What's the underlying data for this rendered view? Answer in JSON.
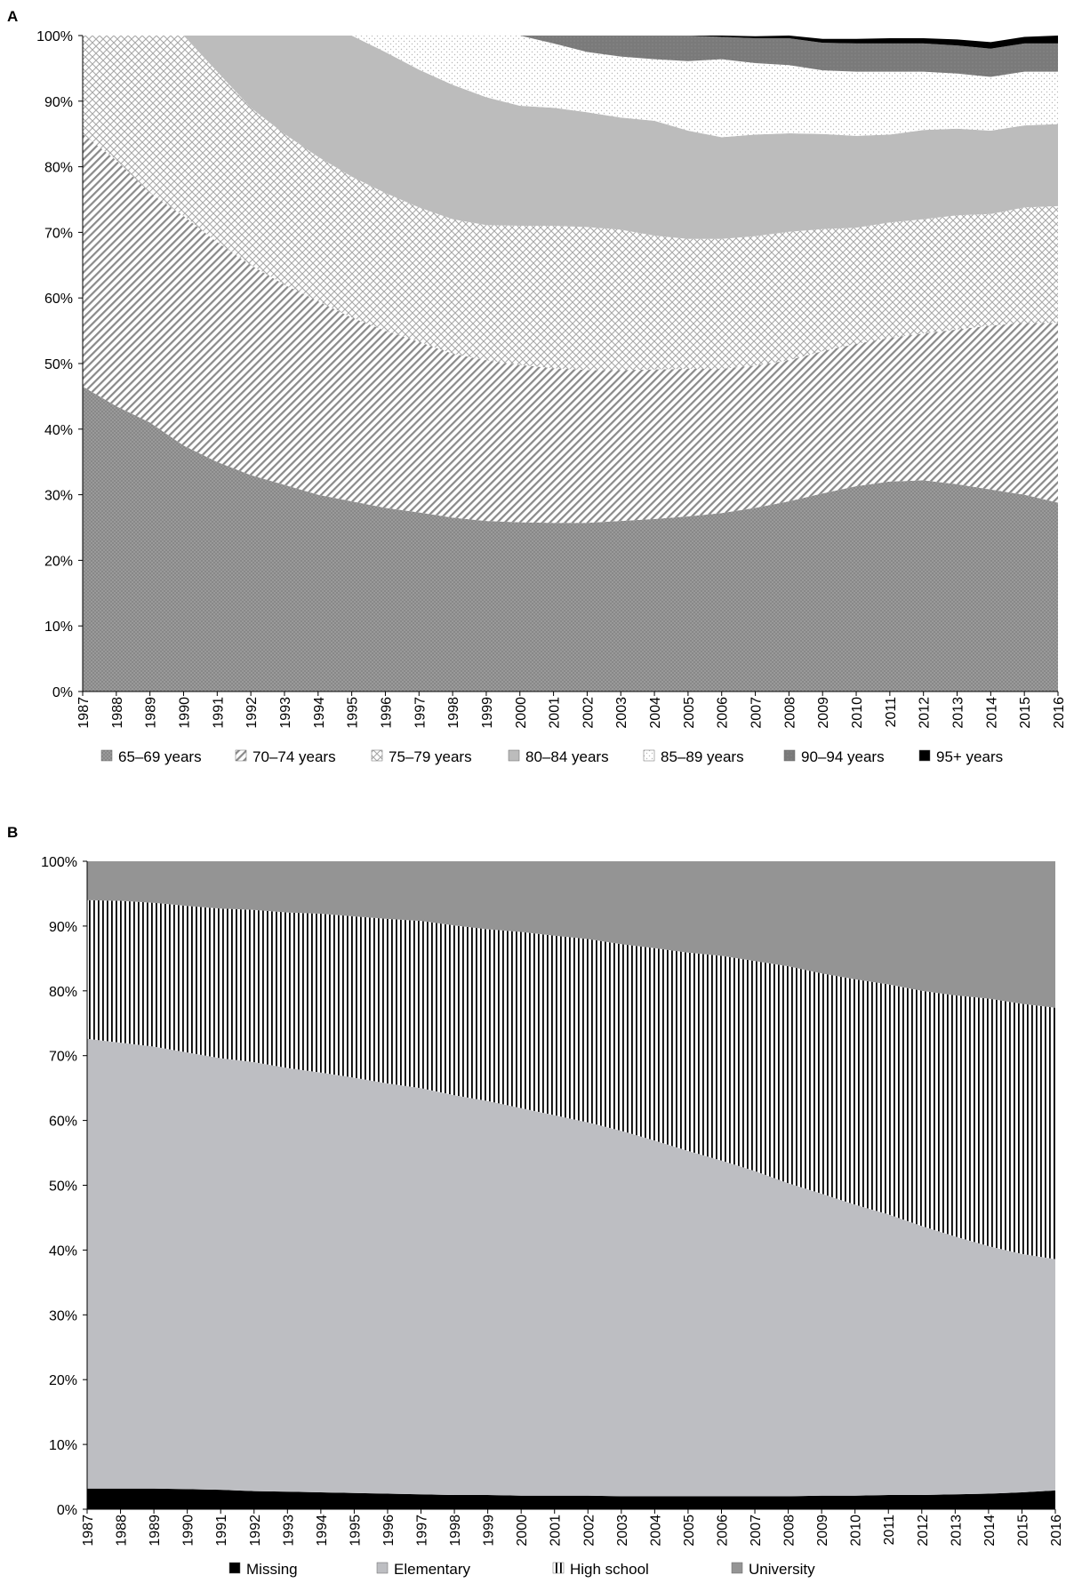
{
  "panels": [
    {
      "label": "A",
      "chart_data": {
        "type": "area",
        "stacked": true,
        "normalized": true,
        "x": [
          1987,
          1988,
          1989,
          1990,
          1991,
          1992,
          1993,
          1994,
          1995,
          1996,
          1997,
          1998,
          1999,
          2000,
          2001,
          2002,
          2003,
          2004,
          2005,
          2006,
          2007,
          2008,
          2009,
          2010,
          2011,
          2012,
          2013,
          2014,
          2015,
          2016
        ],
        "y_ticks": [
          "0%",
          "10%",
          "20%",
          "30%",
          "40%",
          "50%",
          "60%",
          "70%",
          "80%",
          "90%",
          "100%"
        ],
        "ylim": [
          0,
          100
        ],
        "legend_position": "bottom",
        "series": [
          {
            "name": "65–69 years",
            "pattern": "dots",
            "color": "#8c8c8c",
            "values": [
              46.5,
              43.5,
              41,
              37.5,
              35,
              33,
              31.5,
              30,
              29,
              28,
              27.3,
              26.5,
              26,
              25.8,
              25.7,
              25.7,
              26,
              26.3,
              26.7,
              27.2,
              28,
              29,
              30.2,
              31.3,
              32,
              32.2,
              31.6,
              30.8,
              30,
              28.8
            ]
          },
          {
            "name": "70–74 years",
            "pattern": "diagonal",
            "color": "#a8a8a8",
            "values": [
              38.5,
              37.5,
              35,
              35,
              33.5,
              32,
              30.5,
              29.5,
              28,
              27,
              26,
              25,
              24.5,
              24,
              23.6,
              23.3,
              23,
              22.8,
              22.5,
              22,
              21.7,
              21.5,
              21.7,
              21.7,
              21.9,
              22.4,
              23.6,
              25,
              26.2,
              27.4
            ]
          },
          {
            "name": "75–79 years",
            "pattern": "crosshatch",
            "color": "#b0b0b0",
            "values": [
              15,
              19,
              24,
              27.5,
              26,
              24,
              23,
              22,
              21.5,
              21,
              20.5,
              20.5,
              20.6,
              21.2,
              21.7,
              21.8,
              21.4,
              20.4,
              19.8,
              19.8,
              19.7,
              19.6,
              18.6,
              17.7,
              17.6,
              17.4,
              17.4,
              17,
              17.6,
              17.8
            ]
          },
          {
            "name": "80–84  years",
            "pattern": "solid-light",
            "color": "#bcbcbc",
            "values": [
              0,
              0,
              0,
              0,
              5.5,
              11,
              15,
              18.5,
              21.5,
              21.5,
              21,
              20.5,
              19.5,
              18.3,
              18,
              17.5,
              17.1,
              17.5,
              16.5,
              15.5,
              15.5,
              15,
              14.5,
              14,
              13.4,
              13.6,
              13.2,
              12.7,
              12.5,
              12.5
            ]
          },
          {
            "name": "85–89 years",
            "pattern": "sparse-dots",
            "color": "#dcdcdc",
            "values": [
              0,
              0,
              0,
              0,
              0,
              0,
              0,
              0,
              0,
              2.5,
              5.2,
              7.5,
              9.4,
              10.7,
              9.8,
              9.2,
              9.3,
              9.4,
              10.6,
              11.9,
              10.9,
              10.4,
              9.7,
              9.8,
              9.6,
              8.9,
              8.4,
              8.2,
              8.2,
              8
            ]
          },
          {
            "name": "90–94 years",
            "pattern": "solid-dark",
            "color": "#7a7a7a",
            "values": [
              0,
              0,
              0,
              0,
              0,
              0,
              0,
              0,
              0,
              0,
              0,
              0,
              0,
              0,
              1.2,
              2.5,
              3.2,
              3.6,
              3.9,
              3.4,
              3.8,
              4.1,
              4.2,
              4.3,
              4.3,
              4.3,
              4.3,
              4.3,
              4.3,
              4.3
            ]
          },
          {
            "name": "95+  years",
            "pattern": "solid-black",
            "color": "#000000",
            "values": [
              0,
              0,
              0,
              0,
              0,
              0,
              0,
              0,
              0,
              0,
              0,
              0,
              0,
              0,
              0,
              0,
              0,
              0,
              0,
              0.2,
              0.3,
              0.5,
              0.6,
              0.7,
              0.8,
              0.8,
              0.9,
              1,
              1,
              1.2
            ]
          }
        ]
      }
    },
    {
      "label": "B",
      "chart_data": {
        "type": "area",
        "stacked": true,
        "normalized": true,
        "x": [
          1987,
          1988,
          1989,
          1990,
          1991,
          1992,
          1993,
          1994,
          1995,
          1996,
          1997,
          1998,
          1999,
          2000,
          2001,
          2002,
          2003,
          2004,
          2005,
          2006,
          2007,
          2008,
          2009,
          2010,
          2011,
          2012,
          2013,
          2014,
          2015,
          2016
        ],
        "y_ticks": [
          "0%",
          "10%",
          "20%",
          "30%",
          "40%",
          "50%",
          "60%",
          "70%",
          "80%",
          "90%",
          "100%"
        ],
        "ylim": [
          0,
          100
        ],
        "legend_position": "bottom",
        "series": [
          {
            "name": "Missing",
            "pattern": "solid-black",
            "color": "#000000",
            "values": [
              3.2,
              3.2,
              3.2,
              3.1,
              3,
              2.8,
              2.7,
              2.6,
              2.5,
              2.4,
              2.3,
              2.2,
              2.2,
              2.1,
              2.1,
              2.1,
              2,
              2,
              2,
              2,
              2,
              2,
              2.1,
              2.1,
              2.2,
              2.2,
              2.3,
              2.4,
              2.6,
              2.9
            ]
          },
          {
            "name": "Elementary",
            "pattern": "solid-light",
            "color": "#bdbec2",
            "values": [
              69.4,
              68.8,
              68.2,
              67.4,
              66.6,
              66.2,
              65.4,
              64.8,
              64.1,
              63.3,
              62.7,
              61.7,
              60.8,
              59.8,
              58.7,
              57.6,
              56.4,
              54.9,
              53.3,
              51.8,
              50.2,
              48.3,
              46.6,
              44.9,
              43.3,
              41.5,
              39.8,
              38.2,
              36.8,
              35.7
            ]
          },
          {
            "name": "High school",
            "pattern": "vertical-stripes",
            "color": "#000000",
            "values": [
              21.4,
              21.9,
              22.2,
              22.6,
              23.1,
              23.5,
              24,
              24.5,
              24.9,
              25.4,
              25.8,
              26.2,
              26.5,
              27.2,
              27.7,
              28.3,
              28.8,
              29.7,
              30.6,
              31.6,
              32.4,
              33.5,
              34,
              34.8,
              35.5,
              36.3,
              37.2,
              38.2,
              38.6,
              38.8
            ]
          },
          {
            "name": "University",
            "pattern": "solid-dark",
            "color": "#949494",
            "values": [
              6,
              6.1,
              6.4,
              6.9,
              7.3,
              7.5,
              7.9,
              8.1,
              8.5,
              8.9,
              9.2,
              9.9,
              10.5,
              10.9,
              11.5,
              12,
              12.8,
              13.4,
              14.1,
              14.6,
              15.4,
              16.2,
              17.3,
              18.2,
              19,
              20,
              20.7,
              21.2,
              22,
              22.6
            ]
          }
        ]
      }
    }
  ]
}
